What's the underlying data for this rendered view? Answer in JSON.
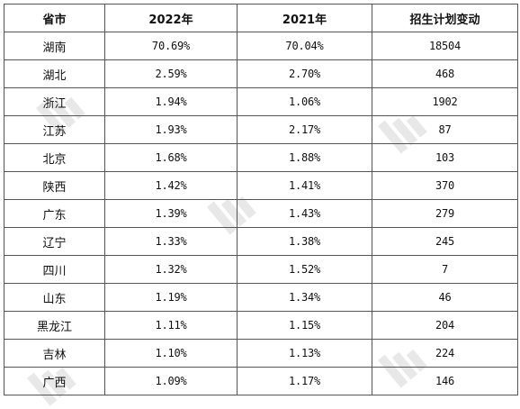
{
  "table": {
    "headers": [
      "省市",
      "2022年",
      "2021年",
      "招生计划变动"
    ],
    "rows": [
      {
        "province": "湖南",
        "y2022": "70.69%",
        "y2021": "70.04%",
        "change": "18504"
      },
      {
        "province": "湖北",
        "y2022": "2.59%",
        "y2021": "2.70%",
        "change": "468"
      },
      {
        "province": "浙江",
        "y2022": "1.94%",
        "y2021": "1.06%",
        "change": "1902"
      },
      {
        "province": "江苏",
        "y2022": "1.93%",
        "y2021": "2.17%",
        "change": "87"
      },
      {
        "province": "北京",
        "y2022": "1.68%",
        "y2021": "1.88%",
        "change": "103"
      },
      {
        "province": "陕西",
        "y2022": "1.42%",
        "y2021": "1.41%",
        "change": "370"
      },
      {
        "province": "广东",
        "y2022": "1.39%",
        "y2021": "1.43%",
        "change": "279"
      },
      {
        "province": "辽宁",
        "y2022": "1.33%",
        "y2021": "1.38%",
        "change": "245"
      },
      {
        "province": "四川",
        "y2022": "1.32%",
        "y2021": "1.52%",
        "change": "7"
      },
      {
        "province": "山东",
        "y2022": "1.19%",
        "y2021": "1.34%",
        "change": "46"
      },
      {
        "province": "黑龙江",
        "y2022": "1.11%",
        "y2021": "1.15%",
        "change": "204"
      },
      {
        "province": "吉林",
        "y2022": "1.10%",
        "y2021": "1.13%",
        "change": "224"
      },
      {
        "province": "广西",
        "y2022": "1.09%",
        "y2021": "1.17%",
        "change": "146"
      }
    ]
  },
  "watermark": {
    "text": "易度排名",
    "subtext": "EDU Ranking.cn",
    "color": "#e2e2e2"
  }
}
